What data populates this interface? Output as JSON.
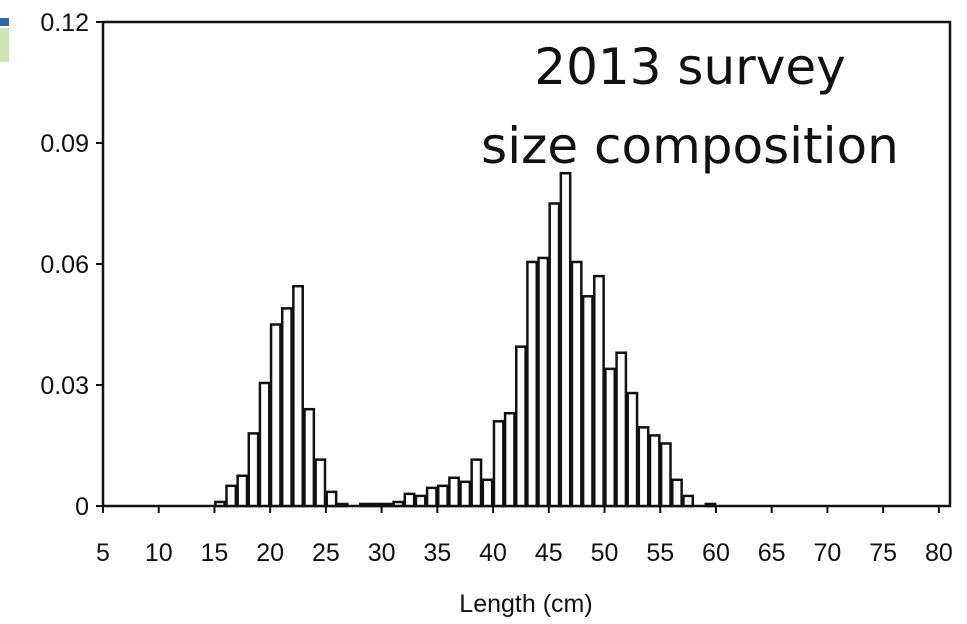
{
  "chart_data": {
    "type": "bar",
    "title": [
      "2013 survey",
      "size composition"
    ],
    "subtitle": "",
    "xlabel": "Length (cm)",
    "ylabel": "",
    "xlim": [
      5,
      81
    ],
    "ylim": [
      0,
      0.12
    ],
    "x_ticks": [
      5,
      10,
      15,
      20,
      25,
      30,
      35,
      40,
      45,
      50,
      55,
      60,
      65,
      70,
      75,
      80
    ],
    "x_tick_labels": [
      "5",
      "10",
      "15",
      "20",
      "25",
      "30",
      "35",
      "40",
      "45",
      "50",
      "55",
      "60",
      "65",
      "70",
      "75",
      "80"
    ],
    "y_ticks": [
      0,
      0.03,
      0.06,
      0.09,
      0.12
    ],
    "y_tick_labels": [
      "0",
      "0.03",
      "0.06",
      "0.09",
      "0.12"
    ],
    "grid": false,
    "legend": "none",
    "colors": {
      "bar_fill": "#ffffff",
      "bar_stroke": "#111111",
      "axis": "#111111",
      "frame": "#111111"
    },
    "x": [
      15,
      16,
      17,
      18,
      19,
      20,
      21,
      22,
      23,
      24,
      25,
      26,
      27,
      28,
      29,
      30,
      31,
      32,
      33,
      34,
      35,
      36,
      37,
      38,
      39,
      40,
      41,
      42,
      43,
      44,
      45,
      46,
      47,
      48,
      49,
      50,
      51,
      52,
      53,
      54,
      55,
      56,
      57,
      58,
      59
    ],
    "values": [
      0.001,
      0.005,
      0.0075,
      0.018,
      0.0305,
      0.045,
      0.049,
      0.0545,
      0.024,
      0.0115,
      0.0035,
      0.0005,
      0,
      0.0005,
      0.0005,
      0.0005,
      0.001,
      0.003,
      0.0025,
      0.0045,
      0.005,
      0.007,
      0.006,
      0.0115,
      0.0065,
      0.021,
      0.023,
      0.0395,
      0.0605,
      0.0615,
      0.075,
      0.0825,
      0.0605,
      0.052,
      0.057,
      0.034,
      0.038,
      0.028,
      0.0195,
      0.0175,
      0.0155,
      0.0065,
      0.0025,
      0,
      0.0005
    ]
  }
}
